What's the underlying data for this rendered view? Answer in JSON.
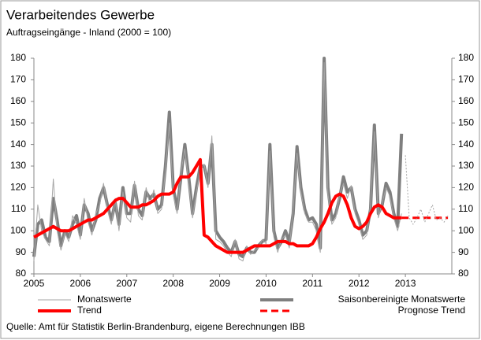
{
  "chart_data": {
    "type": "line",
    "title": "Verarbeitendes Gewerbe",
    "subtitle": "Auftragseingänge - Inland (2000 = 100)",
    "source": "Quelle: Amt für Statistik Berlin-Brandenburg, eigene Berechnungen IBB",
    "xlim": [
      2005,
      2014
    ],
    "xticks": [
      2005,
      2006,
      2007,
      2008,
      2009,
      2010,
      2011,
      2012,
      2013
    ],
    "ylim": [
      80,
      180
    ],
    "yticks": [
      80,
      90,
      100,
      110,
      120,
      130,
      140,
      150,
      160,
      170,
      180
    ],
    "y2lim": [
      80,
      180
    ],
    "y2ticks": [
      80,
      90,
      100,
      110,
      120,
      130,
      140,
      150,
      160,
      170,
      180
    ],
    "x": [
      2005,
      2005.083,
      2005.167,
      2005.25,
      2005.333,
      2005.417,
      2005.5,
      2005.583,
      2005.667,
      2005.75,
      2005.833,
      2005.917,
      2006,
      2006.083,
      2006.167,
      2006.25,
      2006.333,
      2006.417,
      2006.5,
      2006.583,
      2006.667,
      2006.75,
      2006.833,
      2006.917,
      2007,
      2007.083,
      2007.167,
      2007.25,
      2007.333,
      2007.417,
      2007.5,
      2007.583,
      2007.667,
      2007.75,
      2007.833,
      2007.917,
      2008,
      2008.083,
      2008.167,
      2008.25,
      2008.333,
      2008.417,
      2008.5,
      2008.583,
      2008.667,
      2008.75,
      2008.833,
      2008.917,
      2009,
      2009.083,
      2009.167,
      2009.25,
      2009.333,
      2009.417,
      2009.5,
      2009.583,
      2009.667,
      2009.75,
      2009.833,
      2009.917,
      2010,
      2010.083,
      2010.167,
      2010.25,
      2010.333,
      2010.417,
      2010.5,
      2010.583,
      2010.667,
      2010.75,
      2010.833,
      2010.917,
      2011,
      2011.083,
      2011.167,
      2011.25,
      2011.333,
      2011.417,
      2011.5,
      2011.583,
      2011.667,
      2011.75,
      2011.833,
      2011.917,
      2012,
      2012.083,
      2012.167,
      2012.25,
      2012.333,
      2012.417,
      2012.5,
      2012.583,
      2012.667,
      2012.75,
      2012.833,
      2012.917,
      2013,
      2013.083,
      2013.167,
      2013.25,
      2013.333,
      2013.417,
      2013.5,
      2013.583,
      2013.667,
      2013.75,
      2013.833,
      2013.917
    ],
    "series": [
      {
        "name": "Monatswerte",
        "color": "#a6a6a6",
        "width": 1,
        "values": [
          86,
          112,
          100,
          96,
          93,
          124,
          100,
          91,
          99,
          95,
          107,
          103,
          96,
          115,
          104,
          98,
          108,
          112,
          122,
          110,
          103,
          115,
          100,
          118,
          106,
          104,
          123,
          107,
          105,
          120,
          112,
          119,
          108,
          110,
          128,
          150,
          117,
          108,
          127,
          138,
          122,
          106,
          118,
          128,
          131,
          120,
          144,
          96,
          95,
          93,
          90,
          88,
          96,
          87,
          86,
          93,
          89,
          91,
          92,
          96,
          94,
          137,
          97,
          90,
          96,
          98,
          92,
          110,
          136,
          118,
          108,
          104,
          104,
          100,
          90,
          178,
          117,
          103,
          106,
          117,
          122,
          115,
          121,
          108,
          103,
          96,
          98,
          112,
          146,
          106,
          113,
          120,
          116,
          106,
          100,
          108,
          null,
          null,
          null,
          null,
          null,
          null,
          null,
          null,
          null,
          null,
          null,
          null
        ]
      },
      {
        "name": "Saisonbereinigte Monatswerte",
        "color": "#7f7f7f",
        "width": 4,
        "values": [
          88,
          103,
          105,
          97,
          95,
          115,
          105,
          93,
          100,
          97,
          103,
          107,
          98,
          112,
          108,
          100,
          105,
          115,
          120,
          112,
          105,
          113,
          103,
          120,
          108,
          108,
          121,
          110,
          107,
          118,
          115,
          117,
          110,
          112,
          130,
          155,
          120,
          110,
          125,
          140,
          125,
          108,
          120,
          130,
          130,
          122,
          140,
          100,
          97,
          95,
          92,
          90,
          95,
          89,
          88,
          92,
          90,
          90,
          93,
          95,
          96,
          140,
          100,
          92,
          95,
          100,
          95,
          108,
          139,
          120,
          110,
          105,
          106,
          103,
          92,
          180,
          120,
          105,
          108,
          115,
          125,
          118,
          120,
          110,
          105,
          98,
          100,
          110,
          149,
          108,
          112,
          122,
          118,
          108,
          102,
          145,
          null,
          null,
          null,
          null,
          null,
          null,
          null,
          null,
          null,
          null,
          null,
          null
        ]
      },
      {
        "name": "Trend",
        "color": "#ff0000",
        "width": 4,
        "values": [
          97,
          98,
          99,
          100,
          101,
          102,
          101,
          100,
          100,
          100,
          101,
          102,
          103,
          104,
          105,
          105,
          106,
          107,
          108,
          110,
          112,
          114,
          115,
          115,
          113,
          111,
          111,
          111,
          112,
          112,
          113,
          114,
          116,
          117,
          117,
          117,
          118,
          122,
          125,
          125,
          125,
          127,
          130,
          133,
          98,
          97,
          95,
          93,
          92,
          91,
          90,
          90,
          90,
          90,
          90,
          91,
          92,
          93,
          93,
          93,
          93,
          93,
          94,
          95,
          95,
          95,
          94,
          94,
          93,
          93,
          93,
          93,
          94,
          97,
          101,
          104,
          108,
          113,
          116,
          117,
          116,
          112,
          106,
          102,
          101,
          102,
          104,
          108,
          111,
          112,
          111,
          108,
          107,
          106,
          106,
          106,
          null,
          null,
          null,
          null,
          null,
          null,
          null,
          null,
          null,
          null,
          null,
          null
        ]
      },
      {
        "name": "Prognose Trend",
        "color": "#ff0000",
        "width": 3,
        "dash": "9 5",
        "values": [
          null,
          null,
          null,
          null,
          null,
          null,
          null,
          null,
          null,
          null,
          null,
          null,
          null,
          null,
          null,
          null,
          null,
          null,
          null,
          null,
          null,
          null,
          null,
          null,
          null,
          null,
          null,
          null,
          null,
          null,
          null,
          null,
          null,
          null,
          null,
          null,
          null,
          null,
          null,
          null,
          null,
          null,
          null,
          null,
          null,
          null,
          null,
          null,
          null,
          null,
          null,
          null,
          null,
          null,
          null,
          null,
          null,
          null,
          null,
          null,
          null,
          null,
          null,
          null,
          null,
          null,
          null,
          null,
          null,
          null,
          null,
          null,
          null,
          null,
          null,
          null,
          null,
          null,
          null,
          null,
          null,
          null,
          null,
          null,
          null,
          null,
          null,
          null,
          null,
          null,
          null,
          null,
          null,
          null,
          null,
          106,
          106,
          106,
          106,
          106,
          106,
          106,
          106,
          106,
          106,
          106,
          106,
          106
        ]
      },
      {
        "color": "#a6a6a6",
        "width": 1,
        "dash": "2 2",
        "values": [
          null,
          null,
          null,
          null,
          null,
          null,
          null,
          null,
          null,
          null,
          null,
          null,
          null,
          null,
          null,
          null,
          null,
          null,
          null,
          null,
          null,
          null,
          null,
          null,
          null,
          null,
          null,
          null,
          null,
          null,
          null,
          null,
          null,
          null,
          null,
          null,
          null,
          null,
          null,
          null,
          null,
          null,
          null,
          null,
          null,
          null,
          null,
          null,
          null,
          null,
          null,
          null,
          null,
          null,
          null,
          null,
          null,
          null,
          null,
          null,
          null,
          null,
          null,
          null,
          null,
          null,
          null,
          null,
          null,
          null,
          null,
          null,
          null,
          null,
          null,
          null,
          null,
          null,
          null,
          null,
          null,
          null,
          null,
          null,
          null,
          null,
          null,
          null,
          null,
          null,
          null,
          null,
          null,
          null,
          null,
          null,
          135,
          106,
          103,
          106,
          110,
          104,
          108,
          112,
          105,
          106,
          104,
          107
        ]
      }
    ]
  }
}
